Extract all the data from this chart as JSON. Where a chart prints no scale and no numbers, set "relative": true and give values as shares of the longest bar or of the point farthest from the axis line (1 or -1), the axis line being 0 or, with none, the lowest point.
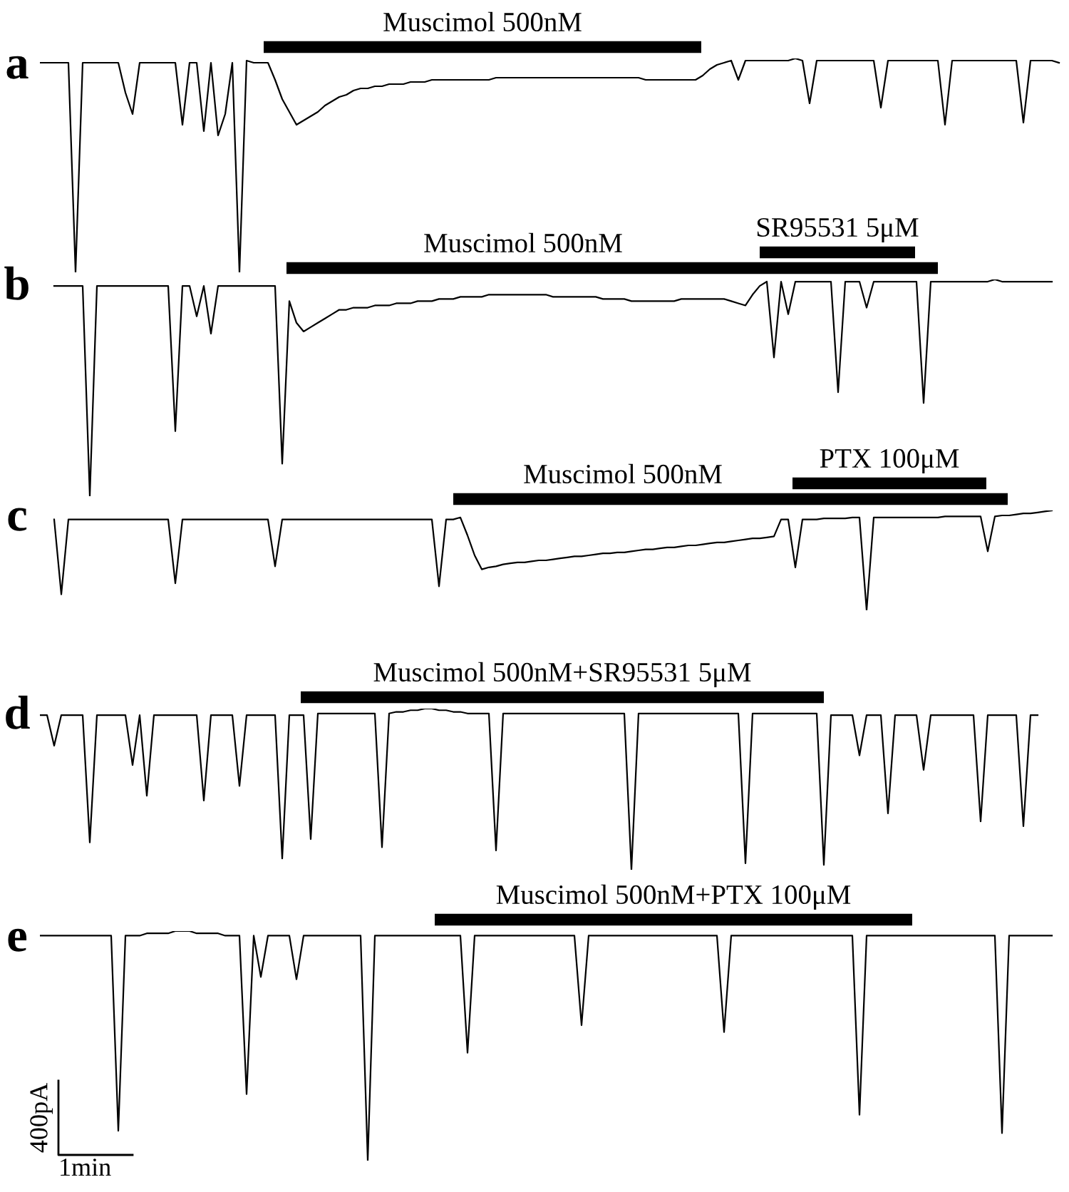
{
  "chart_data": [
    {
      "type": "line",
      "title": "a",
      "relative": true,
      "tick_labels": false,
      "categories": [
        null,
        null,
        null,
        null,
        null,
        null,
        null,
        null,
        null,
        null,
        null,
        null,
        null,
        null,
        null,
        null,
        null,
        null,
        null,
        null,
        null,
        null,
        null,
        null,
        null,
        null,
        null,
        null,
        null,
        null,
        null,
        null,
        null,
        null,
        null,
        null,
        null,
        null,
        null,
        null,
        null,
        null,
        null,
        null,
        null,
        null,
        null,
        null,
        null,
        null,
        null,
        null,
        null,
        null,
        null,
        null,
        null,
        null,
        null,
        null,
        null,
        null,
        null,
        null,
        null,
        null,
        null,
        null,
        null,
        null,
        null,
        null,
        null,
        null,
        null,
        null,
        null,
        null,
        null,
        null,
        null,
        null,
        null,
        null,
        null,
        null,
        null,
        null,
        null,
        null,
        null,
        null,
        null,
        null,
        null,
        null,
        null,
        null,
        null,
        null,
        null,
        null,
        null,
        null,
        null,
        null,
        null,
        null,
        null,
        null,
        null,
        null,
        null,
        null,
        null,
        null,
        null,
        null,
        null,
        null,
        null,
        null,
        null,
        null,
        null,
        null,
        null,
        null,
        null,
        null,
        null,
        null,
        null,
        null,
        null,
        null,
        null,
        null,
        null,
        null,
        null,
        null,
        null,
        null
      ],
      "annotations": [
        "Muscimol 500nM"
      ],
      "series": [
        {
          "color": "#000000",
          "values": [
            0.98,
            0.98,
            0.98,
            0.98,
            0.98,
            0,
            0.98,
            0.98,
            0.98,
            0.98,
            0.98,
            0.98,
            0.84,
            0.74,
            0.98,
            0.98,
            0.98,
            0.98,
            0.98,
            0.98,
            0.69,
            0.98,
            0.98,
            0.66,
            0.98,
            0.64,
            0.74,
            0.98,
            0,
            0.99,
            0.98,
            0.98,
            0.98,
            0.9,
            0.81,
            0.75,
            0.69,
            0.71,
            0.73,
            0.75,
            0.78,
            0.8,
            0.82,
            0.83,
            0.85,
            0.86,
            0.86,
            0.87,
            0.87,
            0.88,
            0.88,
            0.88,
            0.89,
            0.89,
            0.89,
            0.9,
            0.9,
            0.9,
            0.9,
            0.9,
            0.9,
            0.9,
            0.9,
            0.9,
            0.91,
            0.91,
            0.91,
            0.91,
            0.91,
            0.91,
            0.91,
            0.91,
            0.91,
            0.91,
            0.91,
            0.91,
            0.91,
            0.91,
            0.91,
            0.91,
            0.91,
            0.91,
            0.91,
            0.91,
            0.91,
            0.9,
            0.9,
            0.9,
            0.9,
            0.9,
            0.9,
            0.9,
            0.9,
            0.92,
            0.95,
            0.97,
            0.98,
            0.99,
            0.9,
            0.99,
            0.99,
            0.99,
            0.99,
            0.99,
            0.99,
            0.99,
            1,
            0.99,
            0.79,
            0.99,
            0.99,
            0.99,
            0.99,
            0.99,
            0.99,
            0.99,
            0.99,
            0.99,
            0.77,
            0.99,
            0.99,
            0.99,
            0.99,
            0.99,
            0.99,
            0.99,
            0.99,
            0.69,
            0.99,
            0.99,
            0.99,
            0.99,
            0.99,
            0.99,
            0.99,
            0.99,
            0.99,
            0.99,
            0.7,
            0.99,
            0.99,
            0.99,
            0.99,
            0.98
          ]
        }
      ]
    },
    {
      "type": "line",
      "title": "b",
      "relative": true,
      "tick_labels": false,
      "categories": [
        null,
        null,
        null,
        null,
        null,
        null,
        null,
        null,
        null,
        null,
        null,
        null,
        null,
        null,
        null,
        null,
        null,
        null,
        null,
        null,
        null,
        null,
        null,
        null,
        null,
        null,
        null,
        null,
        null,
        null,
        null,
        null,
        null,
        null,
        null,
        null,
        null,
        null,
        null,
        null,
        null,
        null,
        null,
        null,
        null,
        null,
        null,
        null,
        null,
        null,
        null,
        null,
        null,
        null,
        null,
        null,
        null,
        null,
        null,
        null,
        null,
        null,
        null,
        null,
        null,
        null,
        null,
        null,
        null,
        null,
        null,
        null,
        null,
        null,
        null,
        null,
        null,
        null,
        null,
        null,
        null,
        null,
        null,
        null,
        null,
        null,
        null,
        null,
        null,
        null,
        null,
        null,
        null,
        null,
        null,
        null,
        null,
        null,
        null,
        null,
        null,
        null,
        null,
        null,
        null,
        null,
        null,
        null,
        null,
        null,
        null,
        null,
        null,
        null,
        null,
        null,
        null,
        null,
        null,
        null,
        null,
        null,
        null,
        null,
        null,
        null,
        null,
        null,
        null,
        null,
        null,
        null,
        null,
        null,
        null,
        null,
        null,
        null,
        null,
        null,
        null,
        null,
        null,
        null
      ],
      "annotations": [
        "Muscimol 500nM",
        "SR95531 5μM"
      ],
      "series": [
        {
          "color": "#000000",
          "values": [
            null,
            null,
            0.97,
            0.97,
            0.97,
            0.97,
            0.97,
            0,
            0.97,
            0.97,
            0.97,
            0.97,
            0.97,
            0.97,
            0.97,
            0.97,
            0.97,
            0.97,
            0.97,
            0.3,
            0.97,
            0.97,
            0.83,
            0.97,
            0.75,
            0.97,
            0.97,
            0.97,
            0.97,
            0.97,
            0.97,
            0.97,
            0.97,
            0.97,
            0.15,
            0.9,
            0.8,
            0.76,
            0.78,
            0.8,
            0.82,
            0.84,
            0.86,
            0.86,
            0.87,
            0.87,
            0.87,
            0.88,
            0.88,
            0.88,
            0.89,
            0.89,
            0.89,
            0.9,
            0.9,
            0.9,
            0.91,
            0.91,
            0.91,
            0.92,
            0.92,
            0.92,
            0.92,
            0.93,
            0.93,
            0.93,
            0.93,
            0.93,
            0.93,
            0.93,
            0.93,
            0.93,
            0.92,
            0.92,
            0.92,
            0.92,
            0.92,
            0.92,
            0.92,
            0.91,
            0.91,
            0.91,
            0.91,
            0.9,
            0.9,
            0.9,
            0.9,
            0.9,
            0.9,
            0.9,
            0.91,
            0.91,
            0.91,
            0.91,
            0.91,
            0.91,
            0.91,
            0.9,
            0.89,
            0.88,
            0.93,
            0.97,
            0.99,
            0.64,
            0.99,
            0.84,
            0.99,
            0.99,
            0.99,
            0.99,
            0.99,
            0.99,
            0.48,
            0.99,
            0.99,
            0.99,
            0.87,
            0.99,
            0.99,
            0.99,
            0.99,
            0.99,
            0.99,
            0.99,
            0.43,
            0.99,
            0.99,
            0.99,
            0.99,
            0.99,
            0.99,
            0.99,
            0.99,
            0.99,
            1,
            0.99,
            0.99,
            0.99,
            0.99,
            0.99,
            0.99,
            0.99,
            0.99,
            null
          ]
        }
      ]
    },
    {
      "type": "line",
      "title": "c",
      "relative": true,
      "tick_labels": false,
      "categories": [
        null,
        null,
        null,
        null,
        null,
        null,
        null,
        null,
        null,
        null,
        null,
        null,
        null,
        null,
        null,
        null,
        null,
        null,
        null,
        null,
        null,
        null,
        null,
        null,
        null,
        null,
        null,
        null,
        null,
        null,
        null,
        null,
        null,
        null,
        null,
        null,
        null,
        null,
        null,
        null,
        null,
        null,
        null,
        null,
        null,
        null,
        null,
        null,
        null,
        null,
        null,
        null,
        null,
        null,
        null,
        null,
        null,
        null,
        null,
        null,
        null,
        null,
        null,
        null,
        null,
        null,
        null,
        null,
        null,
        null,
        null,
        null,
        null,
        null,
        null,
        null,
        null,
        null,
        null,
        null,
        null,
        null,
        null,
        null,
        null,
        null,
        null,
        null,
        null,
        null,
        null,
        null,
        null,
        null,
        null,
        null,
        null,
        null,
        null,
        null,
        null,
        null,
        null,
        null,
        null,
        null,
        null,
        null,
        null,
        null,
        null,
        null,
        null,
        null,
        null,
        null,
        null,
        null,
        null,
        null,
        null,
        null,
        null,
        null,
        null,
        null,
        null,
        null,
        null,
        null,
        null,
        null,
        null,
        null,
        null,
        null,
        null,
        null,
        null,
        null,
        null,
        null,
        null,
        null
      ],
      "annotations": [
        "Muscimol 500nM",
        "PTX 100μM"
      ],
      "series": [
        {
          "color": "#000000",
          "values": [
            null,
            null,
            0.91,
            0.16,
            0.91,
            0.91,
            0.91,
            0.91,
            0.91,
            0.91,
            0.91,
            0.91,
            0.91,
            0.91,
            0.91,
            0.91,
            0.91,
            0.91,
            0.91,
            0.27,
            0.91,
            0.91,
            0.91,
            0.91,
            0.91,
            0.91,
            0.91,
            0.91,
            0.91,
            0.91,
            0.91,
            0.91,
            0.91,
            0.44,
            0.91,
            0.91,
            0.91,
            0.91,
            0.91,
            0.91,
            0.91,
            0.91,
            0.91,
            0.91,
            0.91,
            0.91,
            0.91,
            0.91,
            0.91,
            0.91,
            0.91,
            0.91,
            0.91,
            0.91,
            0.91,
            0.91,
            0.24,
            0.91,
            0.91,
            0.93,
            0.75,
            0.55,
            0.41,
            0.43,
            0.44,
            0.46,
            0.47,
            0.48,
            0.48,
            0.49,
            0.5,
            0.5,
            0.51,
            0.52,
            0.53,
            0.54,
            0.54,
            0.55,
            0.56,
            0.57,
            0.57,
            0.58,
            0.58,
            0.59,
            0.6,
            0.61,
            0.61,
            0.62,
            0.63,
            0.63,
            0.64,
            0.65,
            0.65,
            0.66,
            0.67,
            0.68,
            0.68,
            0.69,
            0.7,
            0.71,
            0.72,
            0.72,
            0.73,
            0.74,
            0.91,
            0.91,
            0.43,
            0.91,
            0.91,
            0.91,
            0.92,
            0.92,
            0.92,
            0.92,
            0.93,
            0.93,
            0,
            0.93,
            0.93,
            0.93,
            0.93,
            0.93,
            0.93,
            0.93,
            0.93,
            0.93,
            0.93,
            0.94,
            0.94,
            0.94,
            0.94,
            0.94,
            0.94,
            0.59,
            0.94,
            0.95,
            0.95,
            0.96,
            0.97,
            0.97,
            0.98,
            0.99,
            1,
            null
          ]
        }
      ]
    },
    {
      "type": "line",
      "title": "d",
      "relative": true,
      "tick_labels": false,
      "categories": [
        null,
        null,
        null,
        null,
        null,
        null,
        null,
        null,
        null,
        null,
        null,
        null,
        null,
        null,
        null,
        null,
        null,
        null,
        null,
        null,
        null,
        null,
        null,
        null,
        null,
        null,
        null,
        null,
        null,
        null,
        null,
        null,
        null,
        null,
        null,
        null,
        null,
        null,
        null,
        null,
        null,
        null,
        null,
        null,
        null,
        null,
        null,
        null,
        null,
        null,
        null,
        null,
        null,
        null,
        null,
        null,
        null,
        null,
        null,
        null,
        null,
        null,
        null,
        null,
        null,
        null,
        null,
        null,
        null,
        null,
        null,
        null,
        null,
        null,
        null,
        null,
        null,
        null,
        null,
        null,
        null,
        null,
        null,
        null,
        null,
        null,
        null,
        null,
        null,
        null,
        null,
        null,
        null,
        null,
        null,
        null,
        null,
        null,
        null,
        null,
        null,
        null,
        null,
        null,
        null,
        null,
        null,
        null,
        null,
        null,
        null,
        null,
        null,
        null,
        null,
        null,
        null,
        null,
        null,
        null,
        null,
        null,
        null,
        null,
        null,
        null,
        null,
        null,
        null,
        null,
        null,
        null,
        null,
        null,
        null,
        null,
        null,
        null,
        null,
        null,
        null,
        null,
        null,
        null
      ],
      "annotations": [
        "Muscimol 500nM+SR95531 5μM"
      ],
      "series": [
        {
          "color": "#000000",
          "values": [
            0.96,
            0.96,
            0.77,
            0.96,
            0.96,
            0.96,
            0.96,
            0.17,
            0.96,
            0.96,
            0.96,
            0.96,
            0.96,
            0.65,
            0.96,
            0.46,
            0.96,
            0.96,
            0.96,
            0.96,
            0.96,
            0.96,
            0.96,
            0.43,
            0.96,
            0.96,
            0.96,
            0.96,
            0.52,
            0.96,
            0.96,
            0.96,
            0.96,
            0.96,
            0.07,
            0.96,
            0.96,
            0.96,
            0.19,
            0.97,
            0.97,
            0.97,
            0.97,
            0.97,
            0.97,
            0.97,
            0.97,
            0.97,
            0.14,
            0.97,
            0.98,
            0.98,
            0.99,
            0.99,
            1,
            1,
            0.99,
            0.99,
            0.98,
            0.98,
            0.97,
            0.97,
            0.97,
            0.97,
            0.12,
            0.97,
            0.97,
            0.97,
            0.97,
            0.97,
            0.97,
            0.97,
            0.97,
            0.97,
            0.97,
            0.97,
            0.97,
            0.97,
            0.97,
            0.97,
            0.97,
            0.97,
            0.97,
            0,
            0.97,
            0.97,
            0.97,
            0.97,
            0.97,
            0.97,
            0.97,
            0.97,
            0.97,
            0.97,
            0.97,
            0.97,
            0.97,
            0.97,
            0.97,
            0.04,
            0.97,
            0.97,
            0.97,
            0.97,
            0.97,
            0.97,
            0.97,
            0.97,
            0.97,
            0.97,
            0.03,
            0.96,
            0.96,
            0.96,
            0.96,
            0.71,
            0.96,
            0.96,
            0.96,
            0.35,
            0.96,
            0.96,
            0.96,
            0.96,
            0.62,
            0.96,
            0.96,
            0.96,
            0.96,
            0.96,
            0.96,
            0.96,
            0.3,
            0.96,
            0.96,
            0.96,
            0.96,
            0.96,
            0.27,
            0.96,
            0.96,
            null,
            null,
            null
          ]
        }
      ]
    },
    {
      "type": "line",
      "title": "e",
      "relative": true,
      "tick_labels": false,
      "categories": [
        null,
        null,
        null,
        null,
        null,
        null,
        null,
        null,
        null,
        null,
        null,
        null,
        null,
        null,
        null,
        null,
        null,
        null,
        null,
        null,
        null,
        null,
        null,
        null,
        null,
        null,
        null,
        null,
        null,
        null,
        null,
        null,
        null,
        null,
        null,
        null,
        null,
        null,
        null,
        null,
        null,
        null,
        null,
        null,
        null,
        null,
        null,
        null,
        null,
        null,
        null,
        null,
        null,
        null,
        null,
        null,
        null,
        null,
        null,
        null,
        null,
        null,
        null,
        null,
        null,
        null,
        null,
        null,
        null,
        null,
        null,
        null,
        null,
        null,
        null,
        null,
        null,
        null,
        null,
        null,
        null,
        null,
        null,
        null,
        null,
        null,
        null,
        null,
        null,
        null,
        null,
        null,
        null,
        null,
        null,
        null,
        null,
        null,
        null,
        null,
        null,
        null,
        null,
        null,
        null,
        null,
        null,
        null,
        null,
        null,
        null,
        null,
        null,
        null,
        null,
        null,
        null,
        null,
        null,
        null,
        null,
        null,
        null,
        null,
        null,
        null,
        null,
        null,
        null,
        null,
        null,
        null,
        null,
        null,
        null,
        null,
        null,
        null,
        null,
        null,
        null,
        null,
        null,
        null
      ],
      "annotations": [
        "Muscimol 500nM+PTX 100μM",
        "400pA",
        "1min"
      ],
      "series": [
        {
          "color": "#000000",
          "values": [
            0.98,
            0.98,
            0.98,
            0.98,
            0.98,
            0.98,
            0.98,
            0.98,
            0.98,
            0.98,
            0.98,
            0.13,
            0.98,
            0.98,
            0.98,
            0.99,
            0.99,
            0.99,
            0.99,
            1,
            1,
            1,
            0.99,
            0.99,
            0.99,
            0.99,
            0.98,
            0.98,
            0.98,
            0.29,
            0.98,
            0.8,
            0.98,
            0.98,
            0.98,
            0.98,
            0.79,
            0.98,
            0.98,
            0.98,
            0.98,
            0.98,
            0.98,
            0.98,
            0.98,
            0.98,
            0,
            0.98,
            0.98,
            0.98,
            0.98,
            0.98,
            0.98,
            0.98,
            0.98,
            0.98,
            0.98,
            0.98,
            0.98,
            0.98,
            0.47,
            0.98,
            0.98,
            0.98,
            0.98,
            0.98,
            0.98,
            0.98,
            0.98,
            0.98,
            0.98,
            0.98,
            0.98,
            0.98,
            0.98,
            0.98,
            0.59,
            0.98,
            0.98,
            0.98,
            0.98,
            0.98,
            0.98,
            0.98,
            0.98,
            0.98,
            0.98,
            0.98,
            0.98,
            0.98,
            0.98,
            0.98,
            0.98,
            0.98,
            0.98,
            0.98,
            0.56,
            0.98,
            0.98,
            0.98,
            0.98,
            0.98,
            0.98,
            0.98,
            0.98,
            0.98,
            0.98,
            0.98,
            0.98,
            0.98,
            0.98,
            0.98,
            0.98,
            0.98,
            0.98,
            0.2,
            0.98,
            0.98,
            0.98,
            0.98,
            0.98,
            0.98,
            0.98,
            0.98,
            0.98,
            0.98,
            0.98,
            0.98,
            0.98,
            0.98,
            0.98,
            0.98,
            0.98,
            0.98,
            0.98,
            0.12,
            0.98,
            0.98,
            0.98,
            0.98,
            0.98,
            0.98,
            0.98,
            null
          ]
        }
      ]
    }
  ]
}
